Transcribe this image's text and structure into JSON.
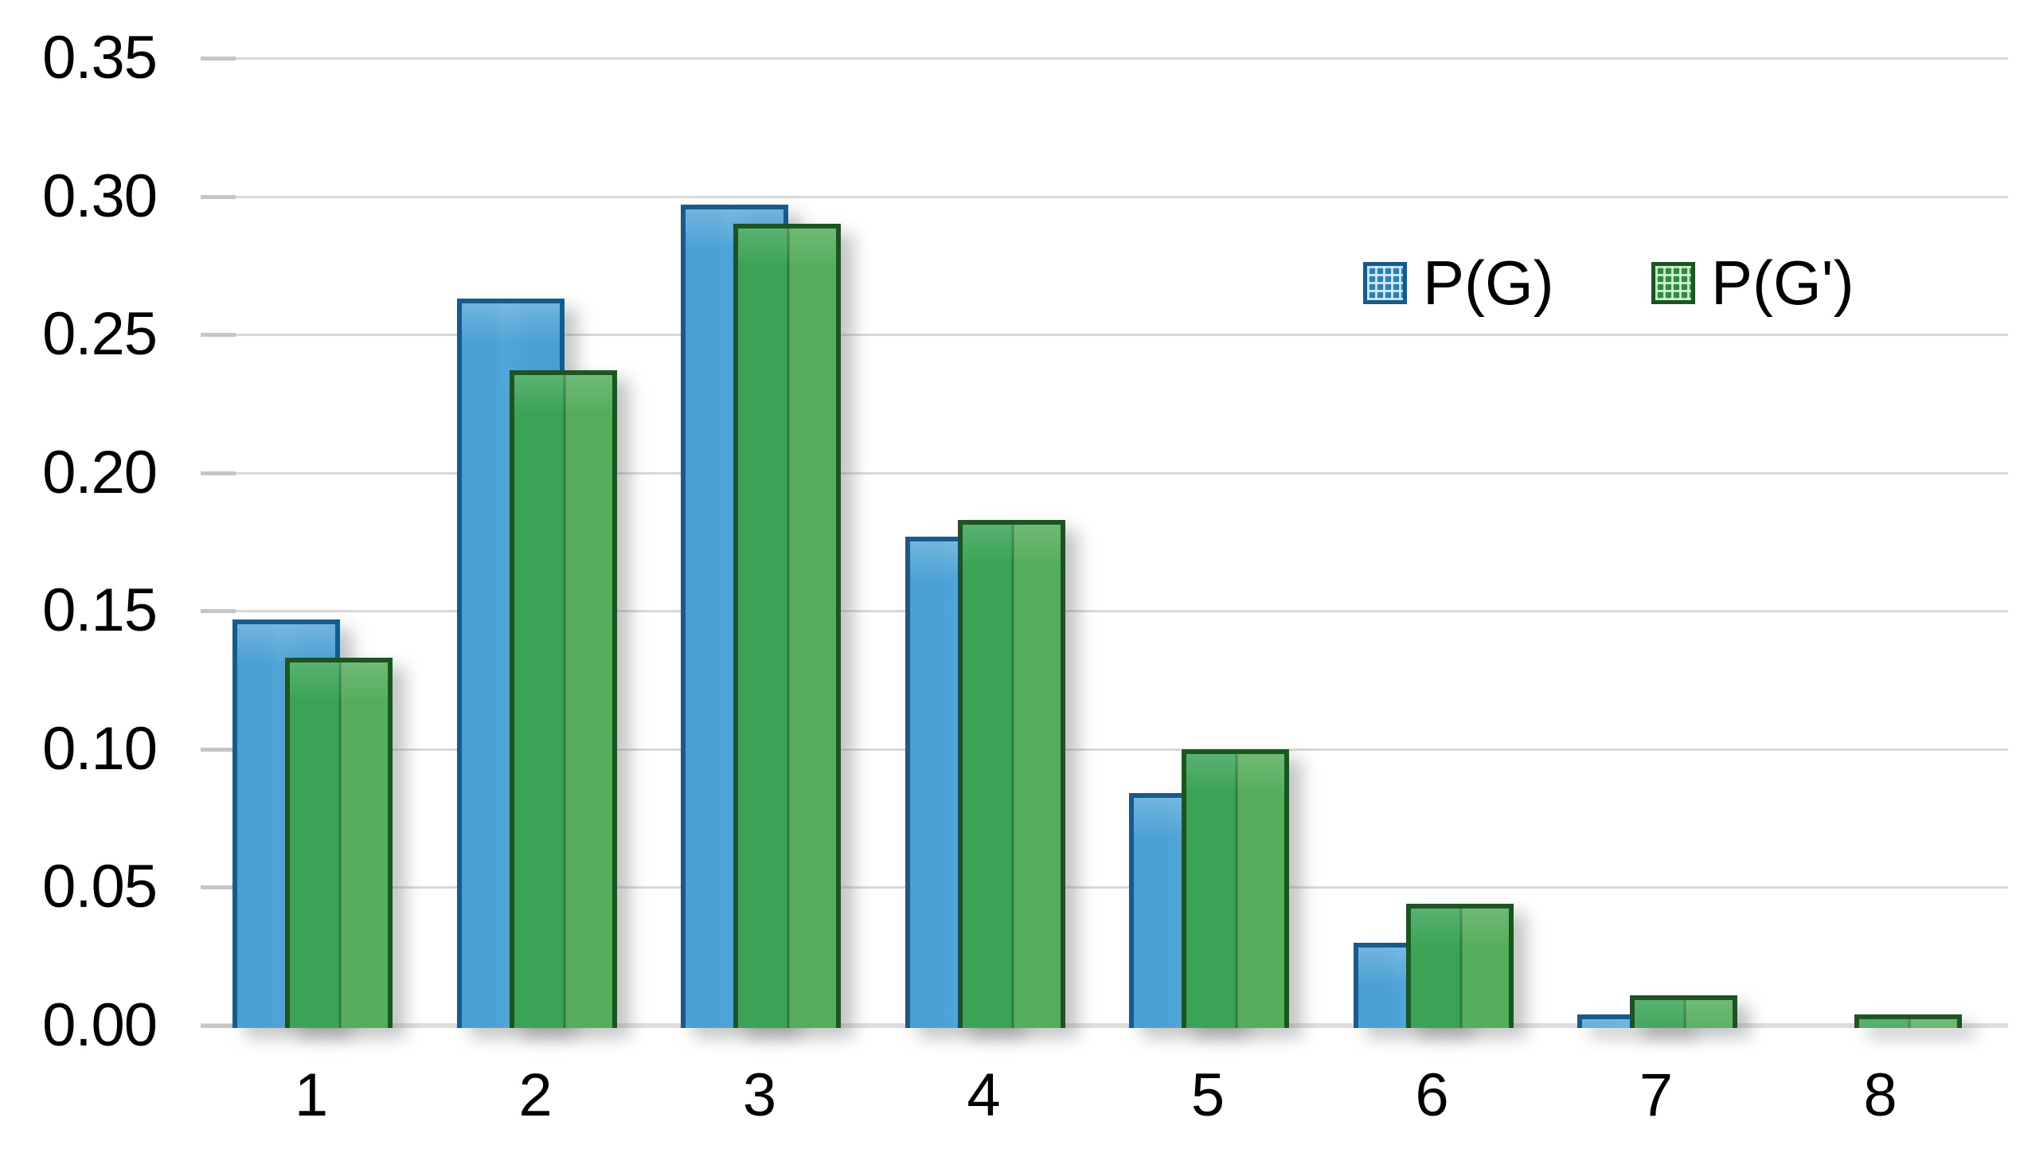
{
  "chart_data": {
    "type": "bar",
    "title": "",
    "xlabel": "",
    "ylabel": "",
    "categories": [
      "1",
      "2",
      "3",
      "4",
      "5",
      "6",
      "7",
      "8"
    ],
    "series": [
      {
        "name": "P(G)",
        "fill_color": "#4aa0d4",
        "border_color": "#175a8c",
        "values": [
          0.147,
          0.263,
          0.297,
          0.177,
          0.084,
          0.03,
          0.004,
          0
        ]
      },
      {
        "name": "P(G')",
        "fill_color": "#44a658",
        "border_color": "#1d5522",
        "values": [
          0.133,
          0.237,
          0.29,
          0.183,
          0.1,
          0.044,
          0.011,
          0.004
        ]
      }
    ],
    "ylim": [
      0,
      0.35
    ],
    "ytick_step": 0.05,
    "ytick_labels": [
      "0.00",
      "0.05",
      "0.10",
      "0.15",
      "0.20",
      "0.25",
      "0.30",
      "0.35"
    ],
    "grid": true,
    "gridline_color": "#d9d9d9",
    "legend_position": "upper-right"
  },
  "legend": {
    "items": [
      {
        "label": "P(G)"
      },
      {
        "label": "P(G')"
      }
    ]
  }
}
